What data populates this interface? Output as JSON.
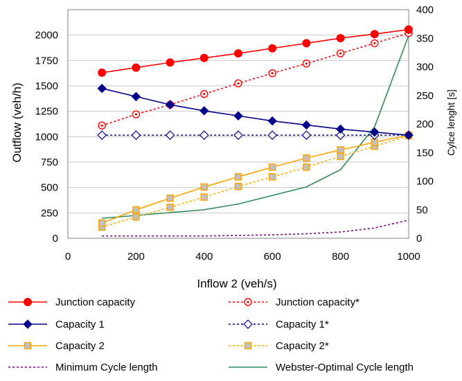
{
  "chart_data": {
    "type": "line",
    "title": "",
    "xlabel": "Inflow 2 (veh/s)",
    "ylabel": "Outflow  (veh/h)",
    "y2label": "Cylce lenght [s]",
    "xlim": [
      0,
      1000
    ],
    "ylim": [
      0,
      2250
    ],
    "y2lim": [
      0,
      400
    ],
    "x_ticks": [
      "0",
      "200",
      "400",
      "600",
      "800",
      "1000"
    ],
    "y_ticks": [
      "0",
      "250",
      "500",
      "750",
      "1000",
      "1250",
      "1500",
      "1750",
      "2000"
    ],
    "y2_ticks": [
      "0",
      "50",
      "100",
      "150",
      "200",
      "250",
      "300",
      "350",
      "400"
    ],
    "grid": "horizontal",
    "legend_position": "bottom",
    "series": [
      {
        "name": "Junction capacity",
        "axis": "left",
        "color": "#ff0000",
        "line": "solid",
        "marker": "filled-circle",
        "x": [
          100,
          200,
          300,
          400,
          500,
          600,
          700,
          800,
          900,
          1000
        ],
        "values": [
          1630,
          1680,
          1730,
          1775,
          1820,
          1870,
          1920,
          1970,
          2010,
          2055
        ]
      },
      {
        "name": "Junction capacity*",
        "axis": "left",
        "color": "#ff0000",
        "line": "dotted",
        "marker": "open-circle-dot",
        "x": [
          100,
          200,
          300,
          400,
          500,
          600,
          700,
          800,
          900,
          1000
        ],
        "values": [
          1110,
          1220,
          1315,
          1420,
          1525,
          1625,
          1720,
          1820,
          1920,
          2020
        ]
      },
      {
        "name": "Capacity 1",
        "axis": "left",
        "color": "#00008b",
        "line": "solid",
        "marker": "filled-diamond",
        "x": [
          100,
          200,
          300,
          400,
          500,
          600,
          700,
          800,
          900,
          1000
        ],
        "values": [
          1475,
          1395,
          1315,
          1255,
          1205,
          1155,
          1115,
          1075,
          1045,
          1015
        ]
      },
      {
        "name": "Capacity 1*",
        "axis": "left",
        "color": "#00008b",
        "line": "dotted",
        "marker": "open-diamond",
        "x": [
          100,
          200,
          300,
          400,
          500,
          600,
          700,
          800,
          900,
          1000
        ],
        "values": [
          1015,
          1015,
          1015,
          1015,
          1015,
          1015,
          1015,
          1015,
          1015,
          1015
        ]
      },
      {
        "name": "Capacity 2",
        "axis": "left",
        "color": "#ffa500",
        "line": "solid",
        "marker": "filled-square",
        "x": [
          100,
          200,
          300,
          400,
          500,
          600,
          700,
          800,
          900,
          1000
        ],
        "values": [
          150,
          280,
          395,
          505,
          605,
          700,
          790,
          870,
          945,
          1015
        ]
      },
      {
        "name": "Capacity 2*",
        "axis": "left",
        "color": "#ffa500",
        "line": "dotted",
        "marker": "filled-square",
        "x": [
          100,
          200,
          300,
          400,
          500,
          600,
          700,
          800,
          900,
          1000
        ],
        "values": [
          110,
          210,
          305,
          405,
          510,
          605,
          700,
          805,
          905,
          1010
        ]
      },
      {
        "name": "Minimum Cycle length",
        "axis": "right",
        "color": "#800080",
        "line": "dotted",
        "marker": "none",
        "x": [
          100,
          200,
          300,
          400,
          500,
          600,
          700,
          800,
          900,
          1000
        ],
        "values": [
          4,
          4,
          4,
          4,
          5,
          6,
          8,
          11,
          18,
          32
        ]
      },
      {
        "name": "Webster-Optimal Cycle length",
        "axis": "right",
        "color": "#2e8b57",
        "line": "solid",
        "marker": "none",
        "x": [
          100,
          200,
          300,
          400,
          500,
          600,
          700,
          800,
          900,
          1000
        ],
        "values": [
          35,
          40,
          45,
          50,
          60,
          75,
          90,
          120,
          195,
          355
        ]
      }
    ]
  }
}
